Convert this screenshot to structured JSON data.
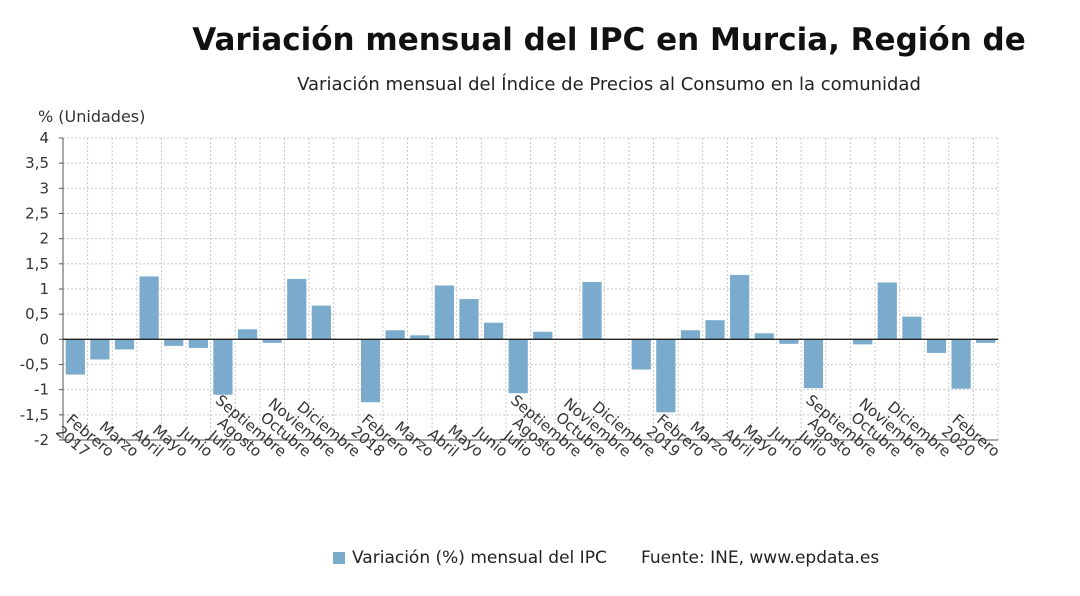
{
  "chart_data": {
    "type": "bar",
    "title": "Variación mensual del IPC en Murcia, Región de",
    "subtitle": "Variación mensual del Índice de Precios al Consumo en la comunidad",
    "ylabel": "% (Unidades)",
    "ylim": [
      -2,
      4
    ],
    "yticks": [
      "-2",
      "-1,5",
      "-1",
      "-0,5",
      "0",
      "0,5",
      "1",
      "1,5",
      "2",
      "2,5",
      "3",
      "3,5",
      "4"
    ],
    "grid": true,
    "categories": [
      "2017",
      "Febrero",
      "Marzo",
      "Abril",
      "Mayo",
      "Junio",
      "Julio",
      "Agosto",
      "Septiembre",
      "Octubre",
      "Noviembre",
      "Diciembre",
      "2018",
      "Febrero",
      "Marzo",
      "Abril",
      "Mayo",
      "Junio",
      "Julio",
      "Agosto",
      "Septiembre",
      "Octubre",
      "Noviembre",
      "Diciembre",
      "2019",
      "Febrero",
      "Marzo",
      "Abril",
      "Mayo",
      "Junio",
      "Julio",
      "Agosto",
      "Septiembre",
      "Octubre",
      "Noviembre",
      "Diciembre",
      "2020",
      "Febrero"
    ],
    "series": [
      {
        "name": "Variación (%) mensual del IPC",
        "color": "#7aaacc",
        "values": [
          -0.7,
          -0.4,
          -0.2,
          1.25,
          -0.13,
          -0.17,
          -1.1,
          0.2,
          -0.07,
          1.2,
          0.67,
          0.0,
          -1.25,
          0.18,
          0.08,
          1.07,
          0.8,
          0.33,
          -1.07,
          0.15,
          0.0,
          1.14,
          0.0,
          -0.6,
          -1.45,
          0.18,
          0.38,
          1.28,
          0.12,
          -0.09,
          -0.97,
          0.0,
          -0.1,
          1.13,
          0.45,
          -0.27,
          -0.98,
          -0.07
        ]
      }
    ],
    "legend_position": "bottom",
    "legend_label": "Variación (%) mensual del IPC",
    "source": "Fuente: INE, www.epdata.es"
  }
}
